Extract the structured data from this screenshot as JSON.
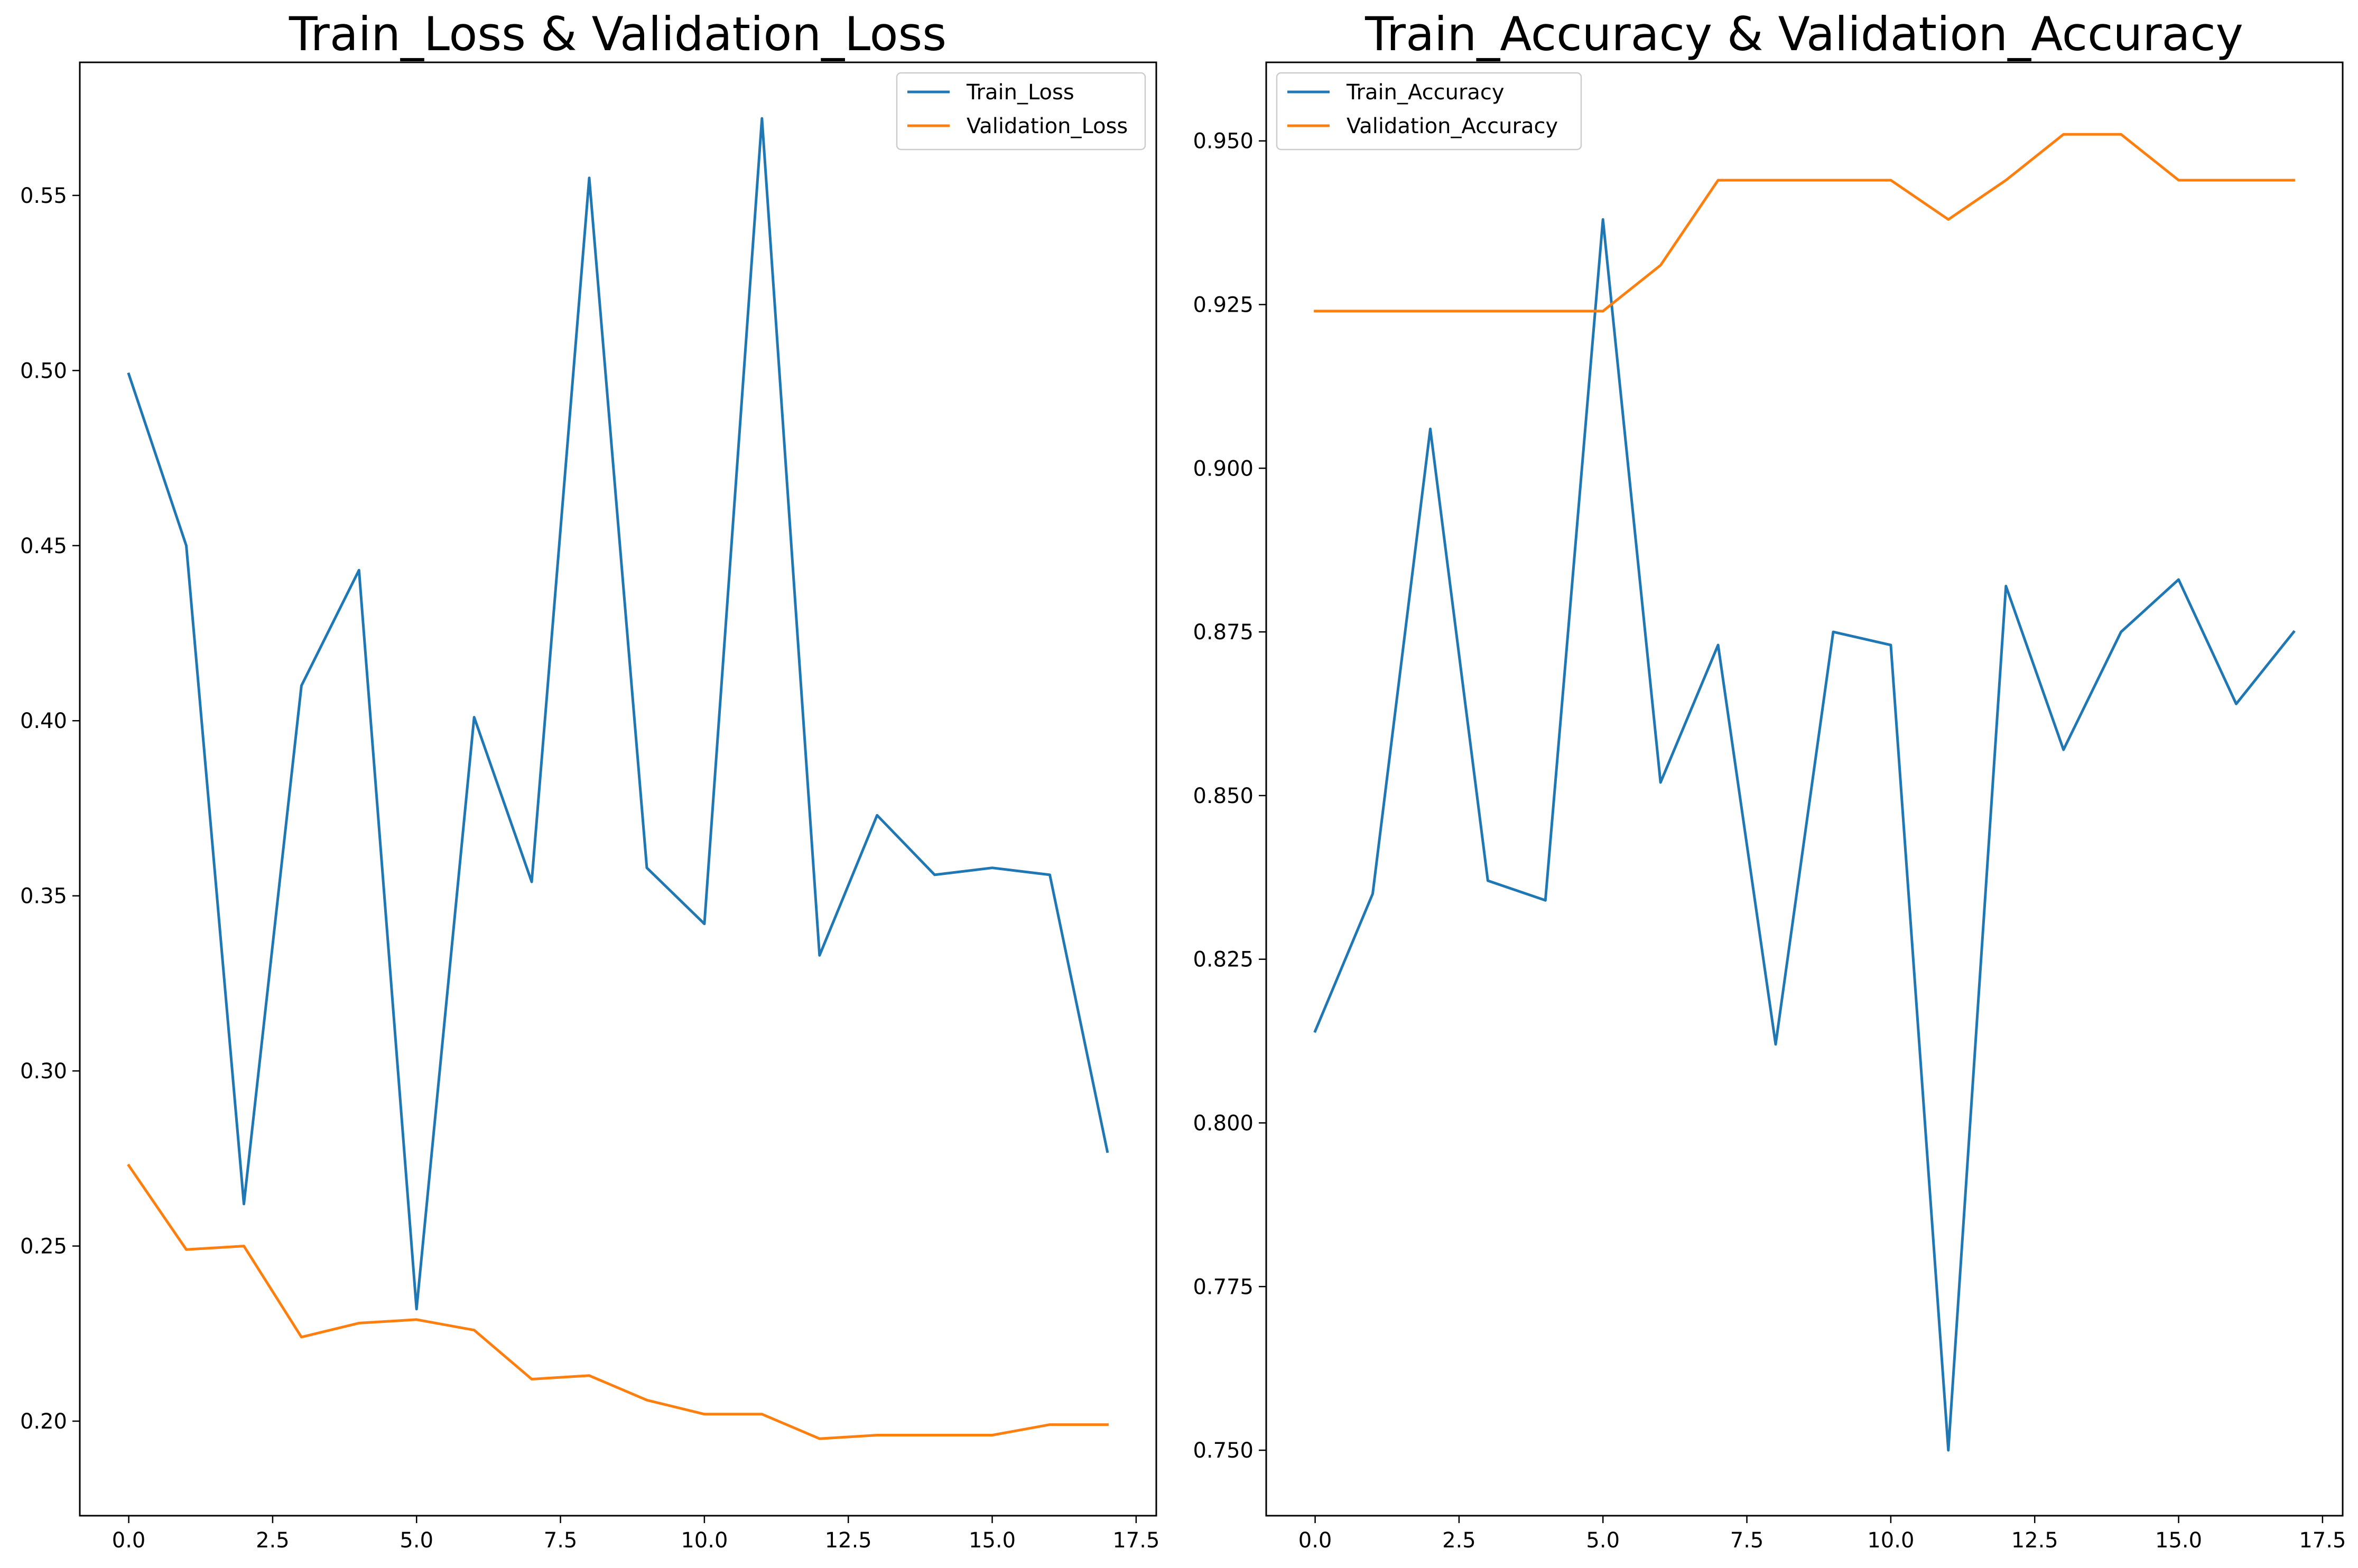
{
  "chart_data": [
    {
      "type": "line",
      "title": "Train_Loss & Validation_Loss",
      "xlabel": "",
      "ylabel": "",
      "x": [
        0,
        1,
        2,
        3,
        4,
        5,
        6,
        7,
        8,
        9,
        10,
        11,
        12,
        13,
        14,
        15,
        16,
        17
      ],
      "xlim": [
        -0.85,
        17.85
      ],
      "ylim": [
        0.173,
        0.588
      ],
      "xticks": [
        0,
        2.5,
        5,
        7.5,
        10,
        12.5,
        15,
        17.5
      ],
      "xtick_labels": [
        "0.0",
        "2.5",
        "5.0",
        "7.5",
        "10.0",
        "12.5",
        "15.0",
        "17.5"
      ],
      "yticks": [
        0.2,
        0.25,
        0.3,
        0.35,
        0.4,
        0.45,
        0.5,
        0.55
      ],
      "ytick_labels": [
        "0.20",
        "0.25",
        "0.30",
        "0.35",
        "0.40",
        "0.45",
        "0.50",
        "0.55"
      ],
      "legend_position": "upper-right",
      "grid": false,
      "series": [
        {
          "name": "Train_Loss",
          "color": "#1f77b4",
          "values": [
            0.499,
            0.45,
            0.262,
            0.41,
            0.443,
            0.232,
            0.401,
            0.354,
            0.555,
            0.358,
            0.342,
            0.572,
            0.333,
            0.373,
            0.356,
            0.358,
            0.356,
            0.277
          ]
        },
        {
          "name": "Validation_Loss",
          "color": "#ff7f0e",
          "values": [
            0.273,
            0.249,
            0.25,
            0.224,
            0.228,
            0.229,
            0.226,
            0.212,
            0.213,
            0.206,
            0.202,
            0.202,
            0.195,
            0.196,
            0.196,
            0.196,
            0.199,
            0.199
          ]
        }
      ]
    },
    {
      "type": "line",
      "title": "Train_Accuracy & Validation_Accuracy",
      "xlabel": "",
      "ylabel": "",
      "x": [
        0,
        1,
        2,
        3,
        4,
        5,
        6,
        7,
        8,
        9,
        10,
        11,
        12,
        13,
        14,
        15,
        16,
        17
      ],
      "xlim": [
        -0.85,
        17.85
      ],
      "ylim": [
        0.74,
        0.962
      ],
      "xticks": [
        0,
        2.5,
        5,
        7.5,
        10,
        12.5,
        15,
        17.5
      ],
      "xtick_labels": [
        "0.0",
        "2.5",
        "5.0",
        "7.5",
        "10.0",
        "12.5",
        "15.0",
        "17.5"
      ],
      "yticks": [
        0.75,
        0.775,
        0.8,
        0.825,
        0.85,
        0.875,
        0.9,
        0.925,
        0.95
      ],
      "ytick_labels": [
        "0.750",
        "0.775",
        "0.800",
        "0.825",
        "0.850",
        "0.875",
        "0.900",
        "0.925",
        "0.950"
      ],
      "legend_position": "upper-left",
      "grid": false,
      "series": [
        {
          "name": "Train_Accuracy",
          "color": "#1f77b4",
          "values": [
            0.814,
            0.835,
            0.906,
            0.837,
            0.834,
            0.938,
            0.852,
            0.873,
            0.812,
            0.875,
            0.873,
            0.75,
            0.882,
            0.857,
            0.875,
            0.883,
            0.864,
            0.875
          ]
        },
        {
          "name": "Validation_Accuracy",
          "color": "#ff7f0e",
          "values": [
            0.924,
            0.924,
            0.924,
            0.924,
            0.924,
            0.924,
            0.931,
            0.944,
            0.944,
            0.944,
            0.944,
            0.938,
            0.944,
            0.951,
            0.951,
            0.944,
            0.944,
            0.944
          ]
        }
      ]
    }
  ]
}
